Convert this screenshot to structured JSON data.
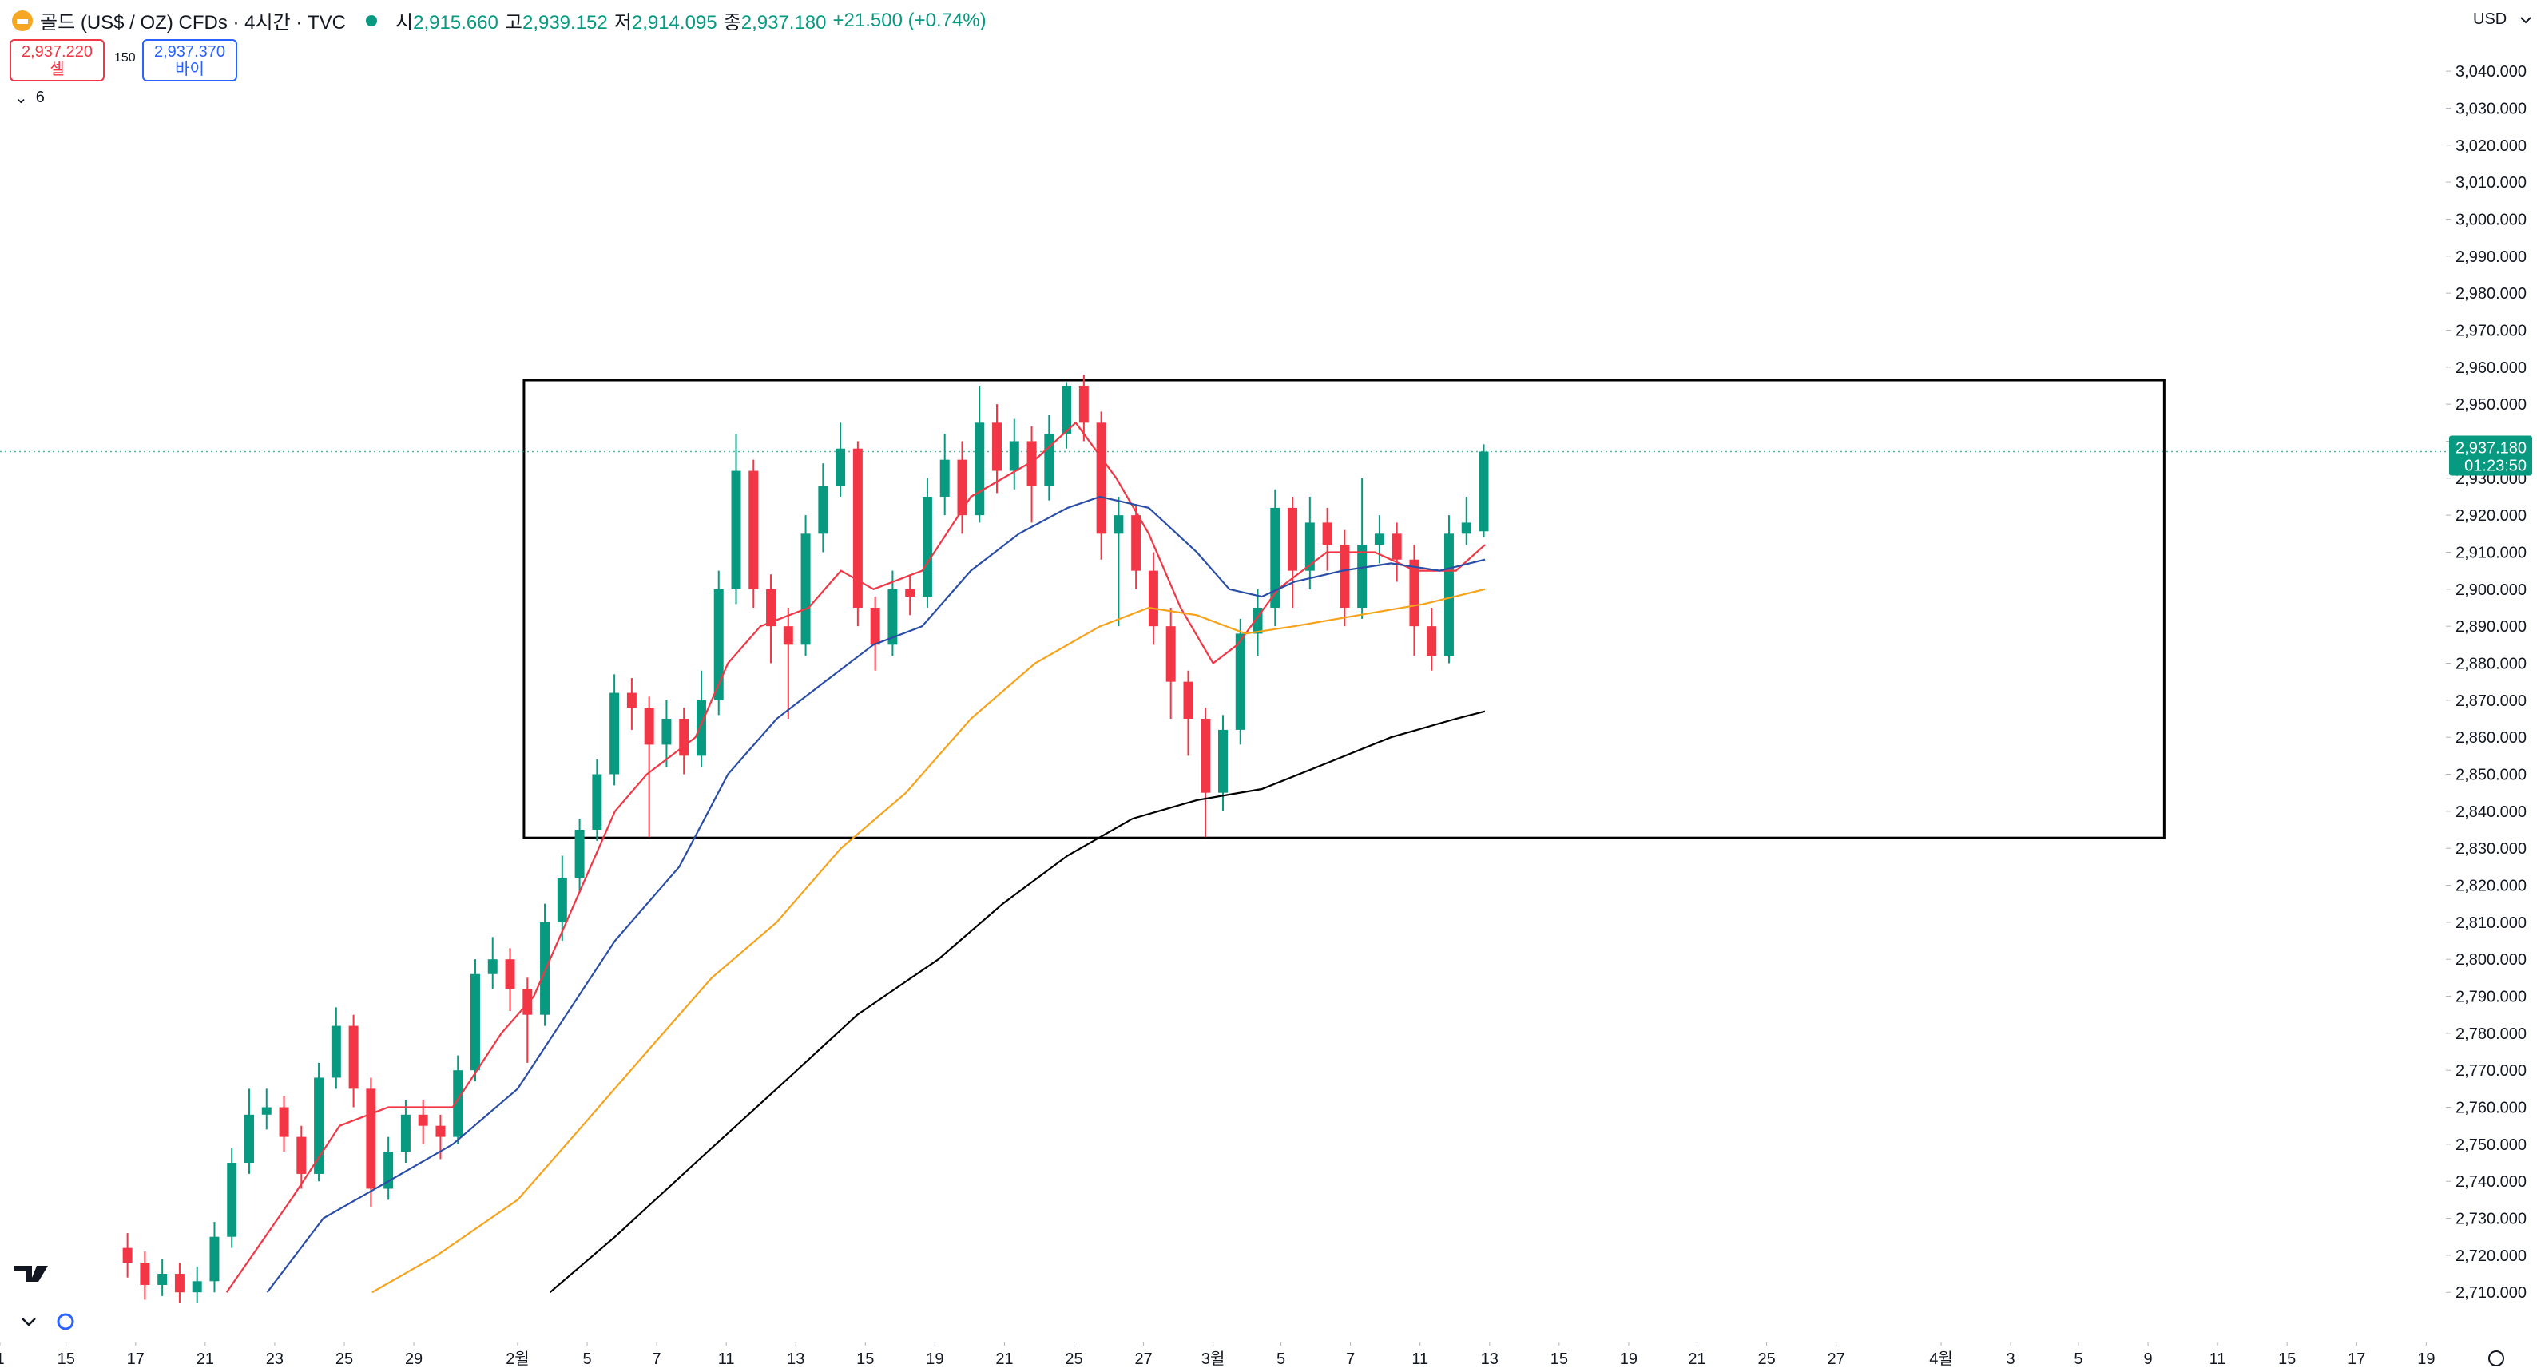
{
  "header": {
    "symbol": "골드 (US$ / OZ) CFDs · 4시간 · TVC",
    "o_label": "시",
    "o": "2,915.660",
    "h_label": "고",
    "h": "2,939.152",
    "l_label": "저",
    "l": "2,914.095",
    "c_label": "종",
    "c": "2,937.180",
    "change": "+21.500 (+0.74%)"
  },
  "trade": {
    "sell_price": "2,937.220",
    "sell": "셀",
    "spread": "150",
    "buy_price": "2,937.370",
    "buy": "바이"
  },
  "indicators_toggle": "6",
  "currency": "USD",
  "chart_data": {
    "type": "candlestick",
    "up_color": "#089981",
    "down_color": "#f23645",
    "grid": false,
    "x": [
      22,
      25,
      28,
      31,
      34,
      37,
      40,
      43,
      46,
      49,
      52,
      55,
      58,
      61,
      64,
      67,
      70,
      73,
      76,
      79,
      82,
      85,
      88,
      91,
      94,
      97,
      100,
      103,
      106,
      109,
      112,
      115,
      118,
      121,
      124,
      127,
      130,
      133,
      136,
      139,
      142,
      145,
      148,
      151,
      154,
      157,
      160,
      163,
      166,
      169,
      172,
      175,
      178,
      181,
      184,
      187,
      190,
      193,
      196,
      199,
      202,
      205,
      208,
      211,
      214,
      217,
      220,
      223,
      226,
      229,
      232,
      235,
      238,
      241,
      244,
      247,
      250,
      253,
      256
    ],
    "open": [
      2722,
      2718,
      2712,
      2715,
      2710,
      2713,
      2725,
      2745,
      2758,
      2760,
      2752,
      2742,
      2768,
      2782,
      2765,
      2738,
      2748,
      2758,
      2755,
      2752,
      2770,
      2796,
      2800,
      2792,
      2785,
      2810,
      2822,
      2835,
      2850,
      2872,
      2868,
      2858,
      2865,
      2855,
      2870,
      2900,
      2932,
      2900,
      2890,
      2885,
      2915,
      2928,
      2938,
      2895,
      2885,
      2900,
      2898,
      2925,
      2935,
      2920,
      2945,
      2932,
      2940,
      2928,
      2942,
      2955,
      2945,
      2915,
      2920,
      2905,
      2890,
      2875,
      2865,
      2845,
      2862,
      2888,
      2895,
      2922,
      2905,
      2918,
      2912,
      2895,
      2912,
      2915,
      2908,
      2890,
      2882,
      2915,
      2915.66
    ],
    "high": [
      2726,
      2721,
      2719,
      2718,
      2717,
      2729,
      2749,
      2765,
      2765,
      2763,
      2755,
      2772,
      2787,
      2785,
      2768,
      2752,
      2762,
      2762,
      2758,
      2774,
      2800,
      2806,
      2803,
      2795,
      2815,
      2828,
      2838,
      2854,
      2877,
      2876,
      2871,
      2870,
      2868,
      2878,
      2905,
      2942,
      2935,
      2904,
      2895,
      2920,
      2934,
      2945,
      2940,
      2898,
      2905,
      2904,
      2930,
      2942,
      2940,
      2955,
      2950,
      2946,
      2944,
      2947,
      2956,
      2958,
      2948,
      2925,
      2923,
      2910,
      2895,
      2878,
      2868,
      2866,
      2892,
      2900,
      2927,
      2925,
      2925,
      2922,
      2916,
      2930,
      2920,
      2918,
      2912,
      2895,
      2920,
      2925,
      2939.152
    ],
    "low": [
      2714,
      2708,
      2709,
      2705,
      2706,
      2710,
      2722,
      2742,
      2754,
      2748,
      2738,
      2740,
      2765,
      2760,
      2733,
      2735,
      2745,
      2750,
      2746,
      2750,
      2767,
      2792,
      2786,
      2772,
      2782,
      2805,
      2818,
      2832,
      2847,
      2862,
      2833,
      2852,
      2850,
      2852,
      2866,
      2896,
      2895,
      2880,
      2865,
      2882,
      2910,
      2925,
      2890,
      2878,
      2882,
      2893,
      2895,
      2920,
      2915,
      2918,
      2926,
      2927,
      2918,
      2924,
      2938,
      2940,
      2908,
      2890,
      2900,
      2885,
      2865,
      2855,
      2833,
      2840,
      2858,
      2882,
      2890,
      2895,
      2900,
      2905,
      2890,
      2892,
      2907,
      2902,
      2882,
      2878,
      2880,
      2912,
      2914.095
    ],
    "close": [
      2718,
      2712,
      2715,
      2710,
      2713,
      2725,
      2745,
      2758,
      2760,
      2752,
      2742,
      2768,
      2782,
      2765,
      2738,
      2748,
      2758,
      2755,
      2752,
      2770,
      2796,
      2800,
      2792,
      2785,
      2810,
      2822,
      2835,
      2850,
      2872,
      2868,
      2858,
      2865,
      2855,
      2870,
      2900,
      2932,
      2900,
      2890,
      2885,
      2915,
      2928,
      2938,
      2895,
      2885,
      2900,
      2898,
      2925,
      2935,
      2920,
      2945,
      2932,
      2940,
      2928,
      2942,
      2955,
      2945,
      2915,
      2920,
      2905,
      2890,
      2875,
      2865,
      2845,
      2862,
      2888,
      2895,
      2922,
      2905,
      2918,
      2912,
      2895,
      2912,
      2915,
      2908,
      2890,
      2882,
      2915,
      2918,
      2937.18
    ],
    "series": [
      {
        "color": "#f23645",
        "x": [
          39.1,
          50.2,
          58.6,
          67,
          78.1,
          86.5,
          92.1,
          100.5,
          106.1,
          111.6,
          120,
          125.6,
          131.2,
          139.5,
          145.1,
          150.7,
          159.1,
          167.5,
          178.6,
          185.6,
          192.6,
          198.2,
          203.7,
          209.3,
          213.5,
          220.5,
          228.9,
          237.2,
          244.2,
          251.2,
          256.2
        ],
        "values": [
          2710,
          2735,
          2755,
          2760,
          2760,
          2780,
          2790,
          2820,
          2840,
          2850,
          2860,
          2880,
          2890,
          2895,
          2905,
          2900,
          2905,
          2925,
          2935,
          2945,
          2930,
          2915,
          2895,
          2880,
          2885,
          2900,
          2910,
          2910,
          2905,
          2905,
          2912
        ]
      },
      {
        "color": "#2a4ea8",
        "x": [
          46.1,
          55.8,
          67,
          78.1,
          89.3,
          97.7,
          106.1,
          117.2,
          125.6,
          134,
          142.3,
          150.7,
          159.1,
          167.5,
          175.8,
          184.2,
          189.8,
          198.2,
          206.5,
          212.1,
          217.7,
          223.3,
          231.6,
          240,
          248.4,
          256.2
        ],
        "values": [
          2710,
          2730,
          2740,
          2750,
          2765,
          2785,
          2805,
          2825,
          2850,
          2865,
          2875,
          2885,
          2890,
          2905,
          2915,
          2922,
          2925,
          2922,
          2910,
          2900,
          2898,
          2902,
          2905,
          2907,
          2905,
          2908
        ]
      },
      {
        "color": "#f7a21b",
        "x": [
          64.2,
          75.4,
          89.3,
          100.5,
          111.6,
          122.8,
          134,
          145.1,
          156.3,
          167.5,
          178.6,
          189.8,
          198.2,
          206.5,
          214.9,
          223.3,
          234.4,
          245.6,
          256.2
        ],
        "values": [
          2710,
          2720,
          2735,
          2755,
          2775,
          2795,
          2810,
          2830,
          2845,
          2865,
          2880,
          2890,
          2895,
          2893,
          2888,
          2890,
          2893,
          2896,
          2900
        ]
      },
      {
        "color": "#000000",
        "x": [
          94.9,
          106.1,
          120,
          134,
          147.9,
          161.9,
          173,
          184.2,
          195.4,
          206.5,
          217.7,
          228.9,
          240,
          251.2,
          256.2
        ],
        "values": [
          2710,
          2725,
          2745,
          2765,
          2785,
          2800,
          2815,
          2828,
          2838,
          2843,
          2846,
          2853,
          2860,
          2865,
          2867
        ]
      }
    ],
    "box": {
      "x": [
        90.4,
        373.4
      ],
      "y": [
        2832.8,
        2956.5
      ],
      "color": "#000000"
    },
    "last_price": {
      "value": 2937.18,
      "label": "2,937.180"
    },
    "countdown": "01:23:50",
    "xlim": [
      0,
      422
    ],
    "ylim": [
      2696.45,
      3059.23
    ],
    "xticks": [
      {
        "value": 0,
        "label": "1"
      },
      {
        "value": 11.4,
        "label": "15"
      },
      {
        "value": 23.4,
        "label": "17"
      },
      {
        "value": 35.4,
        "label": "21"
      },
      {
        "value": 47.4,
        "label": "23"
      },
      {
        "value": 59.4,
        "label": "25"
      },
      {
        "value": 71.4,
        "label": "29"
      },
      {
        "value": 89.3,
        "label": "2월"
      },
      {
        "value": 101.3,
        "label": "5"
      },
      {
        "value": 113.3,
        "label": "7"
      },
      {
        "value": 125.3,
        "label": "11"
      },
      {
        "value": 137.3,
        "label": "13"
      },
      {
        "value": 149.3,
        "label": "15"
      },
      {
        "value": 161.3,
        "label": "19"
      },
      {
        "value": 173.3,
        "label": "21"
      },
      {
        "value": 185.3,
        "label": "25"
      },
      {
        "value": 197.3,
        "label": "27"
      },
      {
        "value": 209.3,
        "label": "3월"
      },
      {
        "value": 221,
        "label": "5"
      },
      {
        "value": 233,
        "label": "7"
      },
      {
        "value": 245,
        "label": "11"
      },
      {
        "value": 257,
        "label": "13"
      },
      {
        "value": 269,
        "label": "15"
      },
      {
        "value": 281,
        "label": "19"
      },
      {
        "value": 292.8,
        "label": "21"
      },
      {
        "value": 304.8,
        "label": "25"
      },
      {
        "value": 316.8,
        "label": "27"
      },
      {
        "value": 334.9,
        "label": "4월"
      },
      {
        "value": 346.9,
        "label": "3"
      },
      {
        "value": 358.6,
        "label": "5"
      },
      {
        "value": 370.6,
        "label": "9"
      },
      {
        "value": 382.6,
        "label": "11"
      },
      {
        "value": 394.6,
        "label": "15"
      },
      {
        "value": 406.6,
        "label": "17"
      },
      {
        "value": 418.6,
        "label": "19"
      }
    ],
    "yticks": [
      {
        "value": 2710,
        "label": "2,710.000"
      },
      {
        "value": 2720,
        "label": "2,720.000"
      },
      {
        "value": 2730,
        "label": "2,730.000"
      },
      {
        "value": 2740,
        "label": "2,740.000"
      },
      {
        "value": 2750,
        "label": "2,750.000"
      },
      {
        "value": 2760,
        "label": "2,760.000"
      },
      {
        "value": 2770,
        "label": "2,770.000"
      },
      {
        "value": 2780,
        "label": "2,780.000"
      },
      {
        "value": 2790,
        "label": "2,790.000"
      },
      {
        "value": 2800,
        "label": "2,800.000"
      },
      {
        "value": 2810,
        "label": "2,810.000"
      },
      {
        "value": 2820,
        "label": "2,820.000"
      },
      {
        "value": 2830,
        "label": "2,830.000"
      },
      {
        "value": 2840,
        "label": "2,840.000"
      },
      {
        "value": 2850,
        "label": "2,850.000"
      },
      {
        "value": 2860,
        "label": "2,860.000"
      },
      {
        "value": 2870,
        "label": "2,870.000"
      },
      {
        "value": 2880,
        "label": "2,880.000"
      },
      {
        "value": 2890,
        "label": "2,890.000"
      },
      {
        "value": 2900,
        "label": "2,900.000"
      },
      {
        "value": 2910,
        "label": "2,910.000"
      },
      {
        "value": 2920,
        "label": "2,920.000"
      },
      {
        "value": 2930,
        "label": "2,930.000"
      },
      {
        "value": 2940,
        "label": "2,940.000"
      },
      {
        "value": 2950,
        "label": "2,950.000"
      },
      {
        "value": 2960,
        "label": "2,960.000"
      },
      {
        "value": 2970,
        "label": "2,970.000"
      },
      {
        "value": 2980,
        "label": "2,980.000"
      },
      {
        "value": 2990,
        "label": "2,990.000"
      },
      {
        "value": 3000,
        "label": "3,000.000"
      },
      {
        "value": 3010,
        "label": "3,010.000"
      },
      {
        "value": 3020,
        "label": "3,020.000"
      },
      {
        "value": 3030,
        "label": "3,030.000"
      },
      {
        "value": 3040,
        "label": "3,040.000"
      }
    ]
  }
}
